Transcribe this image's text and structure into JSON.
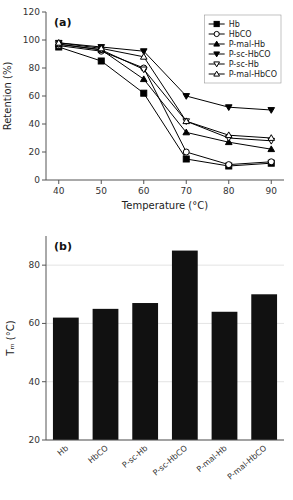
{
  "chart_data": [
    {
      "type": "line",
      "x": [
        40,
        50,
        60,
        70,
        80,
        90
      ],
      "series": [
        {
          "name": "Hb",
          "color": "black",
          "marker": "square",
          "values": [
            95,
            85,
            62,
            15,
            10,
            12
          ]
        },
        {
          "name": "HbCO",
          "color": "black",
          "marker": "circle-open",
          "values": [
            96,
            92,
            80,
            20,
            11,
            13
          ]
        },
        {
          "name": "P-mal-Hb",
          "color": "black",
          "marker": "triangle-up",
          "values": [
            97,
            93,
            72,
            34,
            27,
            22
          ]
        },
        {
          "name": "P-sc-HbCO",
          "color": "black",
          "marker": "triangle-down",
          "values": [
            98,
            95,
            92,
            60,
            52,
            50
          ]
        },
        {
          "name": "P-sc-Hb",
          "color": "black",
          "marker": "triangle-down-open",
          "values": [
            97,
            93,
            79,
            42,
            30,
            28
          ]
        },
        {
          "name": "P-mal-HbCO",
          "color": "black",
          "marker": "triangle-up-open",
          "values": [
            98,
            94,
            88,
            42,
            32,
            30
          ]
        }
      ],
      "xlabel": "Temperature (°C)",
      "ylabel": "Retention (%)",
      "xlim": [
        37,
        93
      ],
      "xticks": [
        40,
        50,
        60,
        70,
        80,
        90
      ],
      "ylim": [
        0,
        120
      ],
      "yticks": [
        0,
        20,
        40,
        60,
        80,
        100,
        120
      ],
      "annotations": [
        "(a)"
      ],
      "legend": "upper-right",
      "grid": false
    },
    {
      "type": "bar",
      "categories": [
        "Hb",
        "HbCO",
        "P-sc-Hb",
        "P-sc-HbCO",
        "P-mal-Hb",
        "P-mal-HbCO"
      ],
      "values": [
        62,
        65,
        67,
        85,
        64,
        70
      ],
      "color": "#111111",
      "ylabel": "Tₘ (°C)",
      "ylim": [
        20,
        90
      ],
      "yticks": [
        20,
        40,
        60,
        80
      ],
      "annotations": [
        "(b)"
      ],
      "grid": true
    }
  ]
}
